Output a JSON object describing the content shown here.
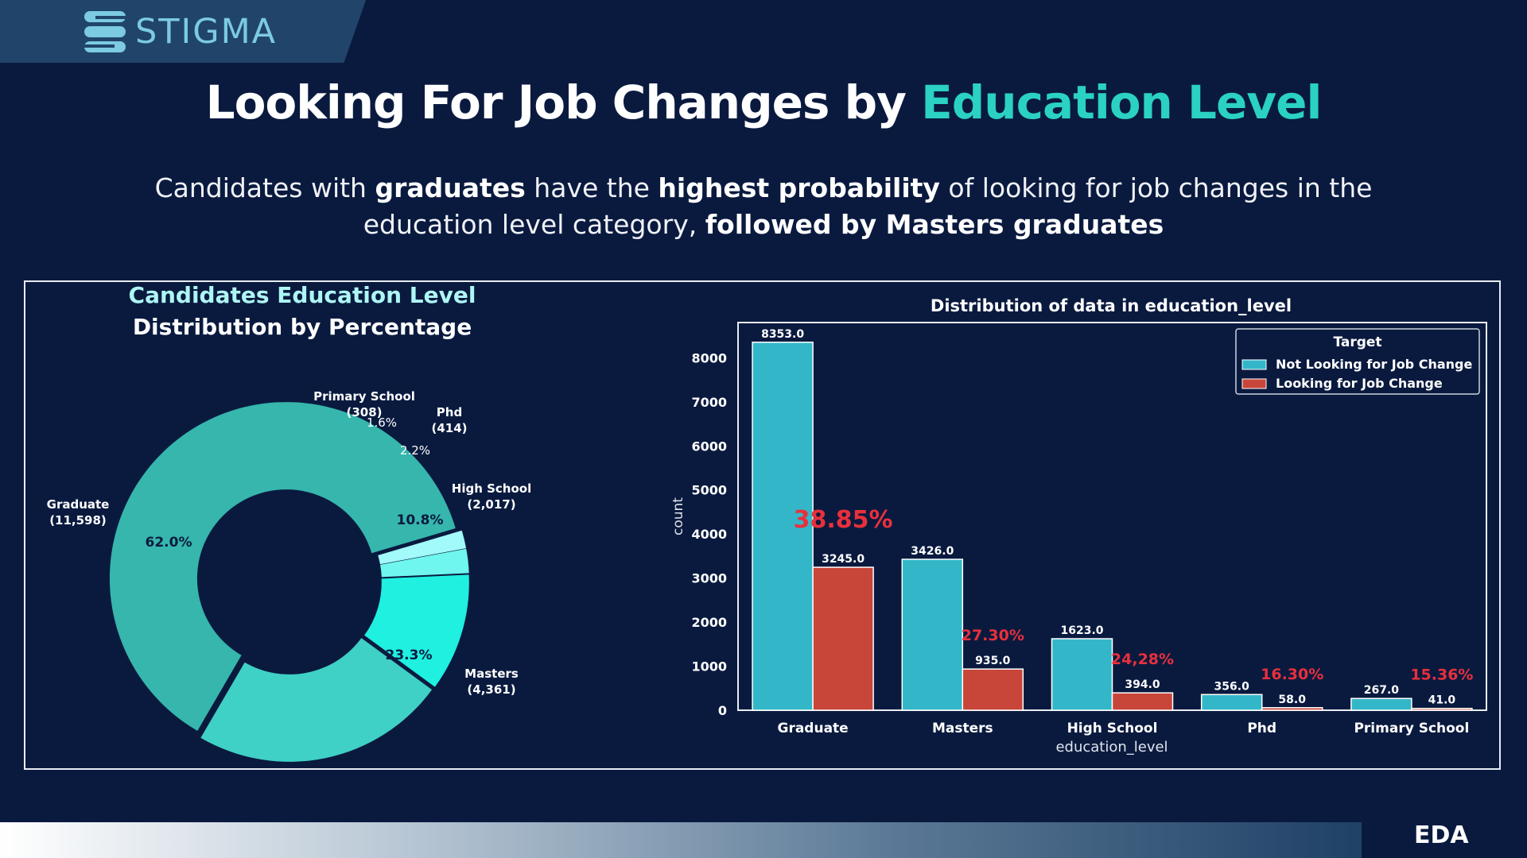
{
  "brand": {
    "name": "STIGMA"
  },
  "header": {
    "title_prefix": "Looking For Job Changes by ",
    "title_accent": "Education Level",
    "colors": {
      "accent": "#2ad1c4",
      "background": "#0a1a3f"
    }
  },
  "subtitle": {
    "p1": "Candidates with ",
    "b1": "graduates",
    "p2": " have the ",
    "b2": "highest probability",
    "p3": " of looking for job changes in the",
    "p4": "education level category, ",
    "b3": "followed by Masters graduates"
  },
  "footer": {
    "section": "EDA"
  },
  "chart_data": [
    {
      "type": "pie",
      "title": "Candidates Education Level",
      "subtitle": "Distribution by Percentage",
      "slices": [
        {
          "label": "Graduate",
          "count": "(11,598)",
          "value": 11598,
          "percent": "62.0%",
          "color": "#36b6ac"
        },
        {
          "label": "Masters",
          "count": "(4,361)",
          "value": 4361,
          "percent": "23.3%",
          "color": "#3fd0c6"
        },
        {
          "label": "High School",
          "count": "(2,017)",
          "value": 2017,
          "percent": "10.8%",
          "color": "#1ff0e0"
        },
        {
          "label": "Phd",
          "count": "(414)",
          "value": 414,
          "percent": "2.2%",
          "color": "#6ff6ee"
        },
        {
          "label": "Primary School",
          "count": "(308)",
          "value": 308,
          "percent": "1.6%",
          "color": "#a3fafa"
        }
      ]
    },
    {
      "type": "bar",
      "title": "Distribution of data in education_level",
      "xlabel": "education_level",
      "ylabel": "count",
      "ylim": [
        0,
        8800
      ],
      "yticks": [
        0,
        1000,
        2000,
        3000,
        4000,
        5000,
        6000,
        7000,
        8000
      ],
      "categories": [
        "Graduate",
        "Masters",
        "High School",
        "Phd",
        "Primary School"
      ],
      "legend": {
        "title": "Target",
        "position": "top-right"
      },
      "series": [
        {
          "name": "Not Looking for Job Change",
          "color": "#33b7c8",
          "values": [
            8353.0,
            3426.0,
            1623.0,
            356.0,
            267.0
          ],
          "labels": [
            "8353.0",
            "3426.0",
            "1623.0",
            "356.0",
            "267.0"
          ]
        },
        {
          "name": "Looking for Job Change",
          "color": "#c8453a",
          "values": [
            3245.0,
            935.0,
            394.0,
            58.0,
            41.0
          ],
          "labels": [
            "3245.0",
            "935.0",
            "394.0",
            "58.0",
            "41.0"
          ]
        }
      ],
      "annotations": [
        "38.85%",
        "27.30%",
        "24,28%",
        "16.30%",
        "15.36%"
      ],
      "annotation_color": "#e8303c"
    }
  ]
}
